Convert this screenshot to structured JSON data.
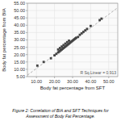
{
  "chart_data": {
    "type": "scatter",
    "title": "Figure 2: Correlation of BIA and SFT Techniques for\nAssessment of Body Fat Percentage.",
    "xlabel": "Body fat percentage from SFT",
    "ylabel": "Body fat percentage from BIA",
    "annotation": "R Sq.Linear = 0.913",
    "grid": true,
    "xlim": [
      5,
      55
    ],
    "ylim": [
      5,
      55
    ],
    "xticks": [
      {
        "value": 10,
        "label": "10.00"
      },
      {
        "value": 20,
        "label": "20.00"
      },
      {
        "value": 30,
        "label": "30.00"
      },
      {
        "value": 40,
        "label": "40.00"
      },
      {
        "value": 50,
        "label": "50.00"
      }
    ],
    "yticks": [
      {
        "value": 5,
        "label": "5.00"
      },
      {
        "value": 10,
        "label": "10.00"
      },
      {
        "value": 15,
        "label": "15.00"
      },
      {
        "value": 20,
        "label": "20.00"
      },
      {
        "value": 25,
        "label": "25.00"
      },
      {
        "value": 30,
        "label": "30.00"
      },
      {
        "value": 35,
        "label": "35.00"
      },
      {
        "value": 40,
        "label": "40.00"
      },
      {
        "value": 45,
        "label": "45.00"
      },
      {
        "value": 50,
        "label": "50.00"
      },
      {
        "value": 55,
        "label": "55.00"
      }
    ],
    "series": [
      {
        "type": "scatter",
        "color": "#444444",
        "marker": "square",
        "x": [
          10.5,
          14.0,
          18.0,
          20.0,
          21.0,
          22.0,
          22.5,
          23.0,
          23.5,
          24.0,
          24.5,
          25.0,
          25.5,
          26.0,
          26.5,
          27.0,
          27.5,
          28.0,
          28.5,
          29.0,
          29.5,
          30.0,
          30.5,
          31.0,
          31.5,
          32.0,
          33.0,
          34.0,
          35.0,
          36.0,
          37.0,
          38.0,
          40.0,
          45.0,
          46.0,
          22.0,
          23.0,
          24.0,
          25.0,
          26.0,
          27.0,
          28.0
        ],
        "values": [
          12.5,
          15.0,
          17.5,
          19.5,
          20.5,
          21.5,
          22.0,
          22.5,
          23.0,
          23.5,
          24.0,
          24.5,
          25.0,
          25.5,
          26.0,
          26.5,
          27.0,
          27.5,
          28.0,
          28.5,
          29.0,
          29.5,
          30.0,
          30.5,
          31.0,
          31.5,
          32.0,
          33.5,
          34.5,
          35.5,
          36.5,
          37.5,
          39.5,
          43.5,
          44.5,
          23.5,
          24.5,
          25.5,
          26.5,
          27.5,
          28.5,
          29.5
        ]
      },
      {
        "type": "line",
        "color": "#aaaaaa",
        "line_style": "dashed",
        "x": [
          5,
          55
        ],
        "values": [
          6,
          52
        ]
      }
    ]
  }
}
